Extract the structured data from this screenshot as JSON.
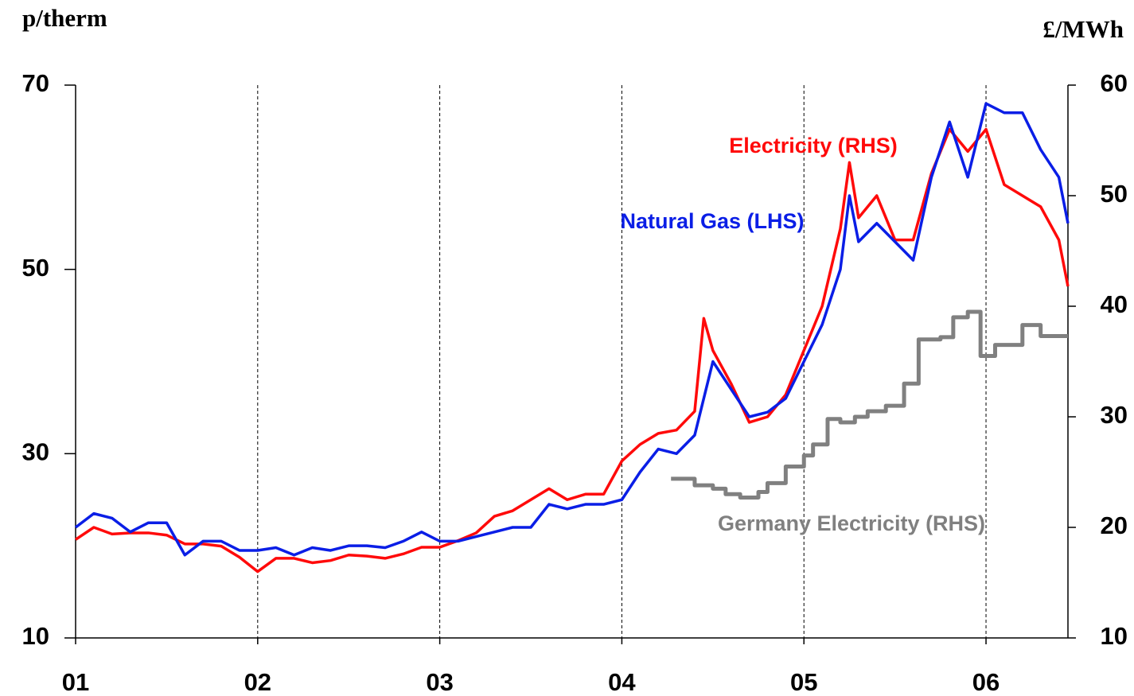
{
  "chart_data": {
    "type": "line",
    "ylabel": "p/therm",
    "y2label": "£/MWh",
    "xlim": [
      1,
      6.45
    ],
    "xticks": [
      {
        "value": 1,
        "label": "01"
      },
      {
        "value": 2,
        "label": "02"
      },
      {
        "value": 3,
        "label": "03"
      },
      {
        "value": 4,
        "label": "04"
      },
      {
        "value": 5,
        "label": "05"
      },
      {
        "value": 6,
        "label": "06"
      }
    ],
    "ylim": [
      10,
      70
    ],
    "yticks": [
      10,
      30,
      50,
      70
    ],
    "y2lim": [
      10,
      60
    ],
    "y2ticks": [
      10,
      20,
      30,
      40,
      50,
      60
    ],
    "xgrid": true,
    "series": [
      {
        "name": "Natural Gas (LHS)",
        "color": "#0a1ee6",
        "axis": "y",
        "x": [
          1.0,
          1.1,
          1.2,
          1.3,
          1.4,
          1.5,
          1.6,
          1.7,
          1.8,
          1.9,
          2.0,
          2.1,
          2.2,
          2.3,
          2.4,
          2.5,
          2.6,
          2.7,
          2.8,
          2.9,
          3.0,
          3.1,
          3.2,
          3.3,
          3.4,
          3.5,
          3.6,
          3.7,
          3.8,
          3.9,
          4.0,
          4.1,
          4.2,
          4.3,
          4.4,
          4.5,
          4.6,
          4.7,
          4.8,
          4.9,
          5.0,
          5.1,
          5.2,
          5.25,
          5.3,
          5.4,
          5.5,
          5.6,
          5.7,
          5.8,
          5.9,
          6.0,
          6.1,
          6.2,
          6.3,
          6.4,
          6.45
        ],
        "values": [
          22,
          23.5,
          23,
          21.5,
          22.5,
          22.5,
          19,
          20.5,
          20.5,
          19.5,
          19.5,
          19.8,
          19,
          19.8,
          19.5,
          20,
          20,
          19.8,
          20.5,
          21.5,
          20.5,
          20.5,
          21,
          21.5,
          22,
          22,
          24.5,
          24,
          24.5,
          24.5,
          25,
          28,
          30.5,
          30,
          32,
          40,
          37,
          34,
          34.5,
          36,
          40,
          44,
          50,
          58,
          53,
          55,
          53,
          51,
          60,
          66,
          60,
          68,
          67,
          67,
          63,
          60,
          55
        ]
      },
      {
        "name": "Electricity (RHS)",
        "color": "#ff0a0a",
        "axis": "y2",
        "x": [
          1.0,
          1.1,
          1.2,
          1.3,
          1.4,
          1.5,
          1.6,
          1.7,
          1.8,
          1.9,
          2.0,
          2.1,
          2.2,
          2.3,
          2.4,
          2.5,
          2.6,
          2.7,
          2.8,
          2.9,
          3.0,
          3.1,
          3.2,
          3.3,
          3.4,
          3.5,
          3.6,
          3.7,
          3.8,
          3.9,
          4.0,
          4.1,
          4.2,
          4.3,
          4.4,
          4.45,
          4.5,
          4.6,
          4.7,
          4.8,
          4.9,
          5.0,
          5.1,
          5.2,
          5.25,
          5.3,
          5.4,
          5.5,
          5.6,
          5.7,
          5.8,
          5.9,
          6.0,
          6.1,
          6.2,
          6.3,
          6.4,
          6.45
        ],
        "values": [
          18.9,
          20,
          19.4,
          19.5,
          19.5,
          19.3,
          18.5,
          18.5,
          18.3,
          17.3,
          16,
          17.2,
          17.2,
          16.8,
          17,
          17.5,
          17.4,
          17.2,
          17.6,
          18.2,
          18.2,
          18.8,
          19.5,
          21,
          21.5,
          22.5,
          23.5,
          22.5,
          23,
          23,
          26,
          27.5,
          28.5,
          28.8,
          30.5,
          38.9,
          36,
          33,
          29.5,
          30,
          32,
          36,
          40,
          47,
          53,
          48,
          50,
          46,
          46,
          52,
          56,
          54,
          56,
          51,
          50,
          49,
          46,
          41.8
        ]
      },
      {
        "name": "Germany Electricity (RHS)",
        "color": "#808080",
        "axis": "y2",
        "step": true,
        "x": [
          4.27,
          4.4,
          4.5,
          4.57,
          4.65,
          4.75,
          4.8,
          4.9,
          5.0,
          5.05,
          5.13,
          5.2,
          5.28,
          5.35,
          5.45,
          5.55,
          5.63,
          5.75,
          5.82,
          5.9,
          5.97,
          6.05,
          6.2,
          6.3,
          6.45
        ],
        "values": [
          24.4,
          23.8,
          23.5,
          23,
          22.7,
          23.2,
          24,
          25.5,
          26.5,
          27.5,
          29.8,
          29.5,
          30,
          30.5,
          31,
          33,
          37,
          37.2,
          39,
          39.5,
          35.5,
          36.5,
          38.3,
          37.3,
          37.3
        ]
      }
    ]
  }
}
